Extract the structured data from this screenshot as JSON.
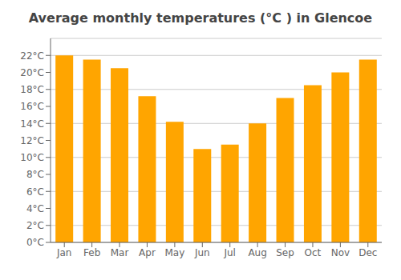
{
  "chart_data": {
    "type": "bar",
    "title": "Average monthly temperatures (°C ) in Glencoe",
    "categories": [
      "Jan",
      "Feb",
      "Mar",
      "Apr",
      "May",
      "Jun",
      "Jul",
      "Aug",
      "Sep",
      "Oct",
      "Nov",
      "Dec"
    ],
    "values": [
      22.0,
      21.5,
      20.5,
      17.2,
      14.2,
      11.0,
      11.5,
      14.0,
      17.0,
      18.5,
      20.0,
      21.5
    ],
    "color": "#FFA500",
    "ylim": [
      0,
      24
    ],
    "yticks": [
      {
        "value": 0,
        "label": "0°C"
      },
      {
        "value": 2,
        "label": "2°C"
      },
      {
        "value": 4,
        "label": "4°C"
      },
      {
        "value": 6,
        "label": "6°C"
      },
      {
        "value": 8,
        "label": "8°C"
      },
      {
        "value": 10,
        "label": "10°C"
      },
      {
        "value": 12,
        "label": "12°C"
      },
      {
        "value": 14,
        "label": "14°C"
      },
      {
        "value": 16,
        "label": "16°C"
      },
      {
        "value": 18,
        "label": "18°C"
      },
      {
        "value": 20,
        "label": "20°C"
      },
      {
        "value": 22,
        "label": "22°C"
      }
    ],
    "grid": true
  }
}
